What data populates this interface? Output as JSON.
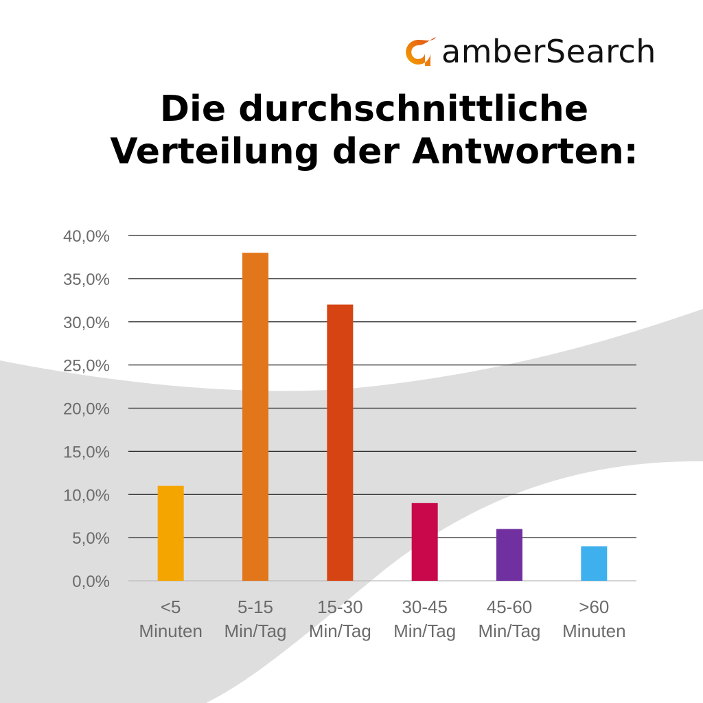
{
  "brand": {
    "name": "amberSearch",
    "colors": {
      "arc_start": "#f5a300",
      "arc_end": "#e0481b"
    }
  },
  "title_lines": [
    "Die durchschnittliche",
    "Verteilung der Antworten:"
  ],
  "chart_data": {
    "type": "bar",
    "title": "Die durchschnittliche Verteilung der Antworten:",
    "categories": [
      [
        "<5",
        "Minuten"
      ],
      [
        "5-15",
        "Min/Tag"
      ],
      [
        "15-30",
        "Min/Tag"
      ],
      [
        "30-45",
        "Min/Tag"
      ],
      [
        "45-60",
        "Min/Tag"
      ],
      [
        ">60",
        "Minuten"
      ]
    ],
    "values": [
      11,
      38,
      32,
      9,
      6,
      4
    ],
    "colors": [
      "#f5a500",
      "#e2761b",
      "#d64414",
      "#c8084a",
      "#7030a0",
      "#3eb0ee"
    ],
    "ylim": [
      0,
      40
    ],
    "yticks": [
      "0,0%",
      "5,0%",
      "10,0%",
      "15,0%",
      "20,0%",
      "25,0%",
      "30,0%",
      "35,0%",
      "40,0%"
    ],
    "ytick_step": 5,
    "grid": true,
    "unit": "%"
  }
}
